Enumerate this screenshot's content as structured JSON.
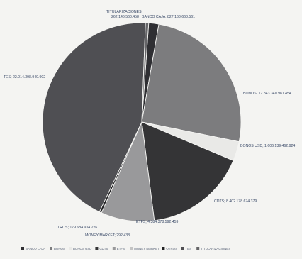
{
  "chart_data": {
    "type": "pie",
    "title": "",
    "slices": [
      {
        "name": "BANCO CAJA",
        "label": "BANCO CAJA; 827.168.668.561",
        "value": 827168668561,
        "color": "#2f2f33"
      },
      {
        "name": "BONOS",
        "label": "BONOS; 12.843.340.981.454",
        "value": 12843340981454,
        "color": "#7c7c7e"
      },
      {
        "name": "BONOS USD",
        "label": "BONOS USD; 1.606.139.462.924",
        "value": 1606139462924,
        "color": "#e9e9e7"
      },
      {
        "name": "CDTS",
        "label": "CDTS; 8.402.178.674.379",
        "value": 8402178674379,
        "color": "#343436"
      },
      {
        "name": "ETFS",
        "label": "ETFS; 4.384.378.592.459",
        "value": 4384378592459,
        "color": "#99999b"
      },
      {
        "name": "MONEY MARKET",
        "label": "MONEY MARKET; 292.438",
        "value": 292438,
        "color": "#c4c4c4"
      },
      {
        "name": "OTROS",
        "label": "OTROS; 179.684.904.226",
        "value": 179684904226,
        "color": "#202022"
      },
      {
        "name": "TES",
        "label": "TES; 22.014.398.940.902",
        "value": 22014398940902,
        "color": "#4f4f53"
      },
      {
        "name": "TITULARIZACIONES",
        "label": "TITULARIZACIONES; 262.146.560.458",
        "value": 262146560458,
        "color": "#656568"
      }
    ],
    "legend": {
      "position": "bottom",
      "entries": [
        "BANCO CAJA",
        "BONOS",
        "BONOS USD",
        "CDTS",
        "ETFS",
        "MONEY MARKET",
        "OTROS",
        "TES",
        "TITULARIZACIONES"
      ]
    }
  }
}
